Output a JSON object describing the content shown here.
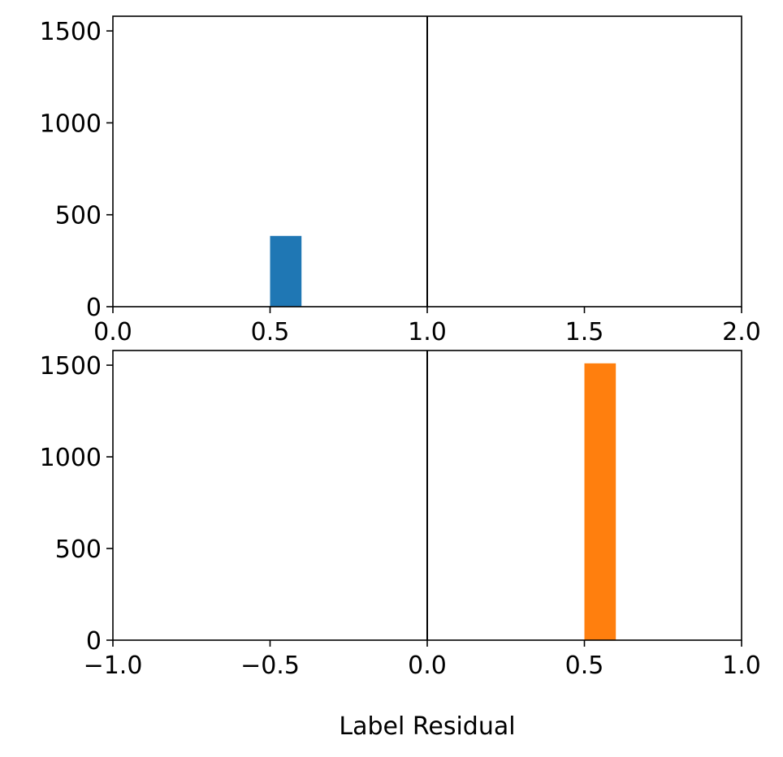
{
  "figure": {
    "xlabel": "Label Residual"
  },
  "chart_data": [
    {
      "type": "bar",
      "xlim": [
        0.0,
        2.0
      ],
      "ylim": [
        0,
        1580
      ],
      "xticks": [
        "0.0",
        "0.5",
        "1.0",
        "1.5",
        "2.0"
      ],
      "yticks": [
        "0",
        "500",
        "1000",
        "1500"
      ],
      "bins": [
        {
          "x0": 0.5,
          "x1": 0.6,
          "count": 385
        }
      ],
      "reference_line_x": 1.0,
      "bar_color": "#1f77b4",
      "grid": false,
      "legend": "none"
    },
    {
      "type": "bar",
      "xlim": [
        -1.0,
        1.0
      ],
      "ylim": [
        0,
        1580
      ],
      "xticks": [
        "−1.0",
        "−0.5",
        "0.0",
        "0.5",
        "1.0"
      ],
      "yticks": [
        "0",
        "500",
        "1000",
        "1500"
      ],
      "bins": [
        {
          "x0": 0.5,
          "x1": 0.6,
          "count": 1510
        }
      ],
      "reference_line_x": 0.0,
      "bar_color": "#ff7f0e",
      "grid": false,
      "legend": "none",
      "xlabel": "Label Residual"
    }
  ]
}
